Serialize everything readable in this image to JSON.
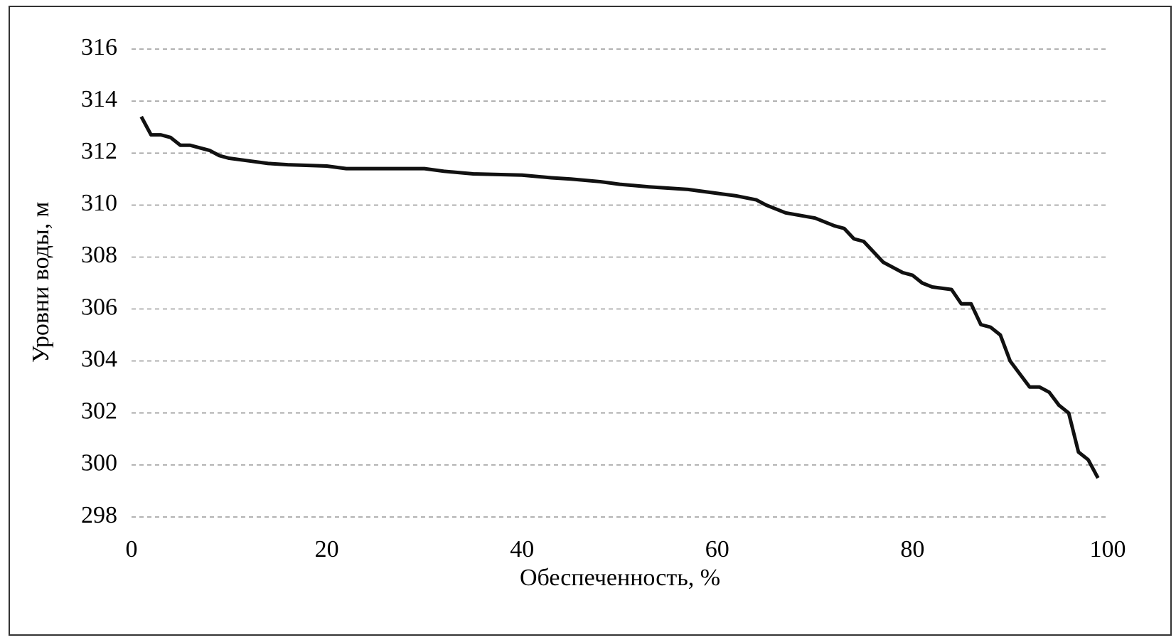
{
  "chart_data": {
    "type": "line",
    "x_label": "Обеспеченность, %",
    "y_label": "Уровни воды, м",
    "x": [
      1,
      2,
      3,
      4,
      5,
      6,
      7,
      8,
      9,
      10,
      12,
      14,
      16,
      20,
      22,
      25,
      30,
      32,
      35,
      40,
      43,
      45,
      48,
      50,
      53,
      57,
      60,
      62,
      64,
      65,
      67,
      70,
      72,
      73,
      74,
      75,
      76,
      77,
      78,
      79,
      80,
      81,
      82,
      84,
      85,
      86,
      87,
      88,
      89,
      90,
      91,
      92,
      93,
      94,
      95,
      96,
      97,
      98,
      99
    ],
    "series": [
      {
        "name": "Уровни воды",
        "color": "#111111",
        "values": [
          313.4,
          312.7,
          312.7,
          312.6,
          312.3,
          312.3,
          312.2,
          312.1,
          311.9,
          311.8,
          311.7,
          311.6,
          311.55,
          311.5,
          311.4,
          311.4,
          311.4,
          311.3,
          311.2,
          311.15,
          311.05,
          311.0,
          310.9,
          310.8,
          310.7,
          310.6,
          310.45,
          310.35,
          310.2,
          310.0,
          309.7,
          309.5,
          309.2,
          309.1,
          308.7,
          308.6,
          308.2,
          307.8,
          307.6,
          307.4,
          307.3,
          307.0,
          306.85,
          306.75,
          306.2,
          306.2,
          305.4,
          305.3,
          305.0,
          304.0,
          303.5,
          303.0,
          303.0,
          302.8,
          302.3,
          302.0,
          300.5,
          300.2,
          299.5
        ]
      }
    ],
    "xlim": [
      0,
      100
    ],
    "xticks": [
      0,
      20,
      40,
      60,
      80,
      100
    ],
    "ylim": [
      298,
      316
    ],
    "yticks": [
      298,
      300,
      302,
      304,
      306,
      308,
      310,
      312,
      314,
      316
    ],
    "grid": true
  }
}
